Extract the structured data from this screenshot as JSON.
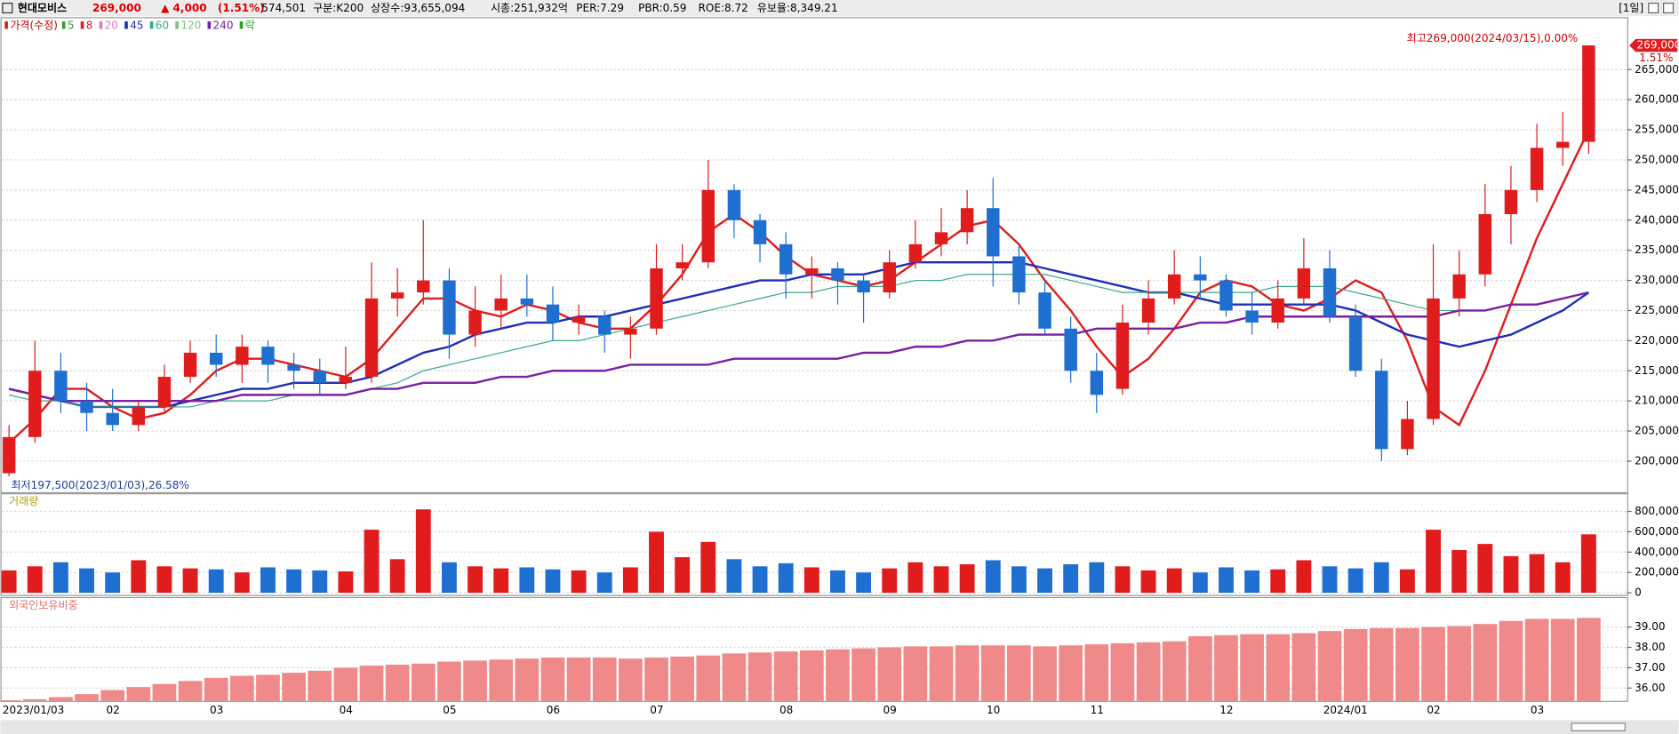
{
  "header": {
    "name": "현대모비스",
    "price": "269,000",
    "change": "▲ 4,000",
    "change_pct": "(1.51%)",
    "volume": "574,501",
    "category": "구분:K200",
    "listed": "상장수:93,655,094",
    "market_cap": "시총:251,932억",
    "per": "PER:7.29",
    "pbr": "PBR:0.59",
    "roe": "ROE:8.72",
    "reserve": "유보율:8,349.21",
    "period": "[1일]"
  },
  "chart_data": [
    {
      "type": "candlestick",
      "title": "가격(수정)",
      "up_color": "#e01c1c",
      "down_color": "#1f6fd1",
      "legend": [
        {
          "name": "5",
          "color": "#2ca02c"
        },
        {
          "name": "8",
          "color": "#e01c1c"
        },
        {
          "name": "20",
          "color": "#e377c2"
        },
        {
          "name": "45",
          "color": "#1f2fb5"
        },
        {
          "name": "60",
          "color": "#3aa88a"
        },
        {
          "name": "120",
          "color": "#7fbf7f"
        },
        {
          "name": "240",
          "color": "#7b1fa2"
        },
        {
          "name": "락",
          "color": "#2ca02c"
        }
      ],
      "categories": [
        "2023/01/03",
        null,
        null,
        null,
        "02",
        null,
        null,
        null,
        "03",
        null,
        null,
        null,
        null,
        "04",
        null,
        null,
        null,
        "05",
        null,
        null,
        null,
        "06",
        null,
        null,
        null,
        "07",
        null,
        null,
        null,
        null,
        "08",
        null,
        null,
        null,
        "09",
        null,
        null,
        null,
        "10",
        null,
        null,
        null,
        "11",
        null,
        null,
        null,
        null,
        "12",
        null,
        null,
        null,
        "2024/01",
        null,
        null,
        null,
        "02",
        null,
        null,
        null,
        "03",
        null,
        null
      ],
      "open": [
        198000,
        204000,
        215000,
        210000,
        208000,
        206000,
        209000,
        214000,
        218000,
        216000,
        219000,
        216000,
        215000,
        213000,
        214000,
        227000,
        228000,
        230000,
        221000,
        225000,
        227000,
        226000,
        223000,
        224000,
        221000,
        222000,
        232000,
        233000,
        245000,
        240000,
        236000,
        231000,
        232000,
        230000,
        228000,
        233000,
        236000,
        238000,
        242000,
        234000,
        228000,
        222000,
        215000,
        212000,
        223000,
        227000,
        231000,
        230000,
        225000,
        223000,
        227000,
        232000,
        224000,
        215000,
        202000,
        207000,
        227000,
        231000,
        241000,
        245000,
        252000,
        253000
      ],
      "high": [
        206000,
        220000,
        218000,
        213000,
        212000,
        210000,
        216000,
        220000,
        221000,
        221000,
        220000,
        218000,
        217000,
        219000,
        233000,
        232000,
        240000,
        232000,
        229000,
        231000,
        231000,
        229000,
        226000,
        225000,
        224000,
        236000,
        236000,
        250000,
        246000,
        241000,
        238000,
        234000,
        233000,
        231000,
        235000,
        240000,
        242000,
        245000,
        247000,
        236000,
        230000,
        224000,
        218000,
        226000,
        230000,
        235000,
        234000,
        231000,
        228000,
        230000,
        237000,
        235000,
        226000,
        217000,
        210000,
        236000,
        235000,
        246000,
        249000,
        256000,
        258000,
        269000
      ],
      "low": [
        197500,
        203000,
        208000,
        205000,
        205000,
        205000,
        208000,
        213000,
        214000,
        213000,
        213000,
        212000,
        211000,
        212000,
        213000,
        224000,
        226000,
        217000,
        219000,
        222000,
        224000,
        220000,
        221000,
        218000,
        217000,
        221000,
        230000,
        232000,
        237000,
        233000,
        227000,
        227000,
        226000,
        223000,
        227000,
        232000,
        234000,
        236000,
        229000,
        226000,
        221000,
        213000,
        208000,
        211000,
        221000,
        226000,
        227000,
        224000,
        221000,
        222000,
        226000,
        223000,
        214000,
        200000,
        201000,
        206000,
        224000,
        229000,
        236000,
        243000,
        249000,
        251000
      ],
      "close": [
        204000,
        215000,
        210000,
        208000,
        206000,
        209000,
        214000,
        218000,
        216000,
        219000,
        216000,
        215000,
        213000,
        214000,
        227000,
        228000,
        230000,
        221000,
        225000,
        227000,
        226000,
        223000,
        224000,
        221000,
        222000,
        232000,
        233000,
        245000,
        240000,
        236000,
        231000,
        232000,
        230000,
        228000,
        233000,
        236000,
        238000,
        242000,
        234000,
        228000,
        222000,
        215000,
        211000,
        223000,
        227000,
        231000,
        230000,
        225000,
        223000,
        227000,
        232000,
        224000,
        215000,
        202000,
        207000,
        227000,
        231000,
        241000,
        245000,
        252000,
        253000,
        269000
      ],
      "series": [
        {
          "name": "8",
          "color": "#e01c1c",
          "width": 2,
          "values": [
            203000,
            207000,
            212000,
            212000,
            209000,
            207000,
            208000,
            211000,
            215000,
            217000,
            217000,
            216000,
            215000,
            214000,
            217000,
            222000,
            227000,
            227000,
            225000,
            224000,
            226000,
            225000,
            223000,
            222000,
            222000,
            226000,
            231000,
            238000,
            241000,
            238000,
            234000,
            231000,
            230000,
            229000,
            230000,
            233000,
            236000,
            239000,
            240000,
            236000,
            230000,
            225000,
            219000,
            214000,
            217000,
            222000,
            228000,
            230000,
            229000,
            226000,
            225000,
            227000,
            230000,
            228000,
            220000,
            209000,
            206000,
            215000,
            226000,
            237000,
            246000,
            255000
          ]
        },
        {
          "name": "45",
          "color": "#1f2fb5",
          "width": 2,
          "values": [
            212000,
            211000,
            210000,
            209000,
            209000,
            209000,
            209000,
            210000,
            211000,
            212000,
            212000,
            213000,
            213000,
            213000,
            214000,
            216000,
            218000,
            219000,
            221000,
            222000,
            223000,
            223000,
            224000,
            224000,
            225000,
            226000,
            227000,
            228000,
            229000,
            230000,
            230000,
            231000,
            231000,
            231000,
            232000,
            233000,
            233000,
            233000,
            233000,
            233000,
            232000,
            231000,
            230000,
            229000,
            228000,
            228000,
            227000,
            226000,
            226000,
            226000,
            226000,
            226000,
            225000,
            223000,
            221000,
            220000,
            219000,
            220000,
            221000,
            223000,
            225000,
            228000
          ]
        },
        {
          "name": "60",
          "color": "#3aa88a",
          "width": 1,
          "values": [
            211000,
            210000,
            210000,
            209000,
            209000,
            209000,
            209000,
            209000,
            210000,
            210000,
            210000,
            211000,
            211000,
            211000,
            212000,
            213000,
            215000,
            216000,
            217000,
            218000,
            219000,
            220000,
            220000,
            221000,
            222000,
            223000,
            224000,
            225000,
            226000,
            227000,
            228000,
            228000,
            229000,
            229000,
            229000,
            230000,
            230000,
            231000,
            231000,
            231000,
            231000,
            230000,
            229000,
            228000,
            228000,
            228000,
            228000,
            228000,
            228000,
            229000,
            229000,
            229000,
            228000,
            227000,
            226000,
            225000,
            225000,
            225000,
            226000,
            226000,
            227000,
            228000
          ]
        },
        {
          "name": "240",
          "color": "#7b1fa2",
          "width": 2,
          "values": [
            212000,
            211000,
            210000,
            210000,
            210000,
            210000,
            210000,
            210000,
            210000,
            211000,
            211000,
            211000,
            211000,
            211000,
            212000,
            212000,
            213000,
            213000,
            213000,
            214000,
            214000,
            215000,
            215000,
            215000,
            216000,
            216000,
            216000,
            216000,
            217000,
            217000,
            217000,
            217000,
            217000,
            218000,
            218000,
            219000,
            219000,
            220000,
            220000,
            221000,
            221000,
            221000,
            222000,
            222000,
            222000,
            222000,
            223000,
            223000,
            224000,
            224000,
            224000,
            224000,
            224000,
            224000,
            224000,
            224000,
            225000,
            225000,
            226000,
            226000,
            227000,
            228000
          ]
        }
      ],
      "ylim": [
        194850,
        273700
      ],
      "yticks": [
        {
          "value": 200000,
          "label": "200,000"
        },
        {
          "value": 205000,
          "label": "205,000"
        },
        {
          "value": 210000,
          "label": "210,000"
        },
        {
          "value": 215000,
          "label": "215,000"
        },
        {
          "value": 220000,
          "label": "220,000"
        },
        {
          "value": 225000,
          "label": "225,000"
        },
        {
          "value": 230000,
          "label": "230,000"
        },
        {
          "value": 235000,
          "label": "235,000"
        },
        {
          "value": 240000,
          "label": "240,000"
        },
        {
          "value": 245000,
          "label": "245,000"
        },
        {
          "value": 250000,
          "label": "250,000"
        },
        {
          "value": 255000,
          "label": "255,000"
        },
        {
          "value": 260000,
          "label": "260,000"
        },
        {
          "value": 265000,
          "label": "265,000"
        }
      ],
      "grid": true,
      "annotations": {
        "high_note": "최고269,000(2024/03/15),0.00%",
        "change_pct": "1.51%",
        "last_price": {
          "value": 269000,
          "label": "269,000"
        },
        "low_note": "최저197,500(2023/01/03),26.58%"
      }
    },
    {
      "type": "bar",
      "title": "거래량",
      "values": [
        220000,
        260000,
        300000,
        240000,
        200000,
        320000,
        260000,
        240000,
        230000,
        200000,
        250000,
        230000,
        220000,
        210000,
        620000,
        330000,
        820000,
        300000,
        260000,
        240000,
        250000,
        230000,
        220000,
        200000,
        250000,
        600000,
        350000,
        500000,
        330000,
        260000,
        290000,
        250000,
        220000,
        200000,
        240000,
        300000,
        260000,
        280000,
        320000,
        260000,
        240000,
        280000,
        300000,
        260000,
        220000,
        240000,
        200000,
        250000,
        220000,
        230000,
        320000,
        260000,
        240000,
        300000,
        230000,
        620000,
        420000,
        480000,
        360000,
        380000,
        300000,
        574501
      ],
      "ylim": [
        -21000,
        968000
      ],
      "yticks": [
        0,
        {
          "value": 200000,
          "label": "200,000"
        },
        {
          "value": 400000,
          "label": "400,000"
        },
        {
          "value": 600000,
          "label": "600,000"
        },
        {
          "value": 800000,
          "label": "800,000"
        }
      ],
      "grid": true
    },
    {
      "type": "bar",
      "title": "외국인보유비중",
      "color": "#f08a8a",
      "values": [
        35.4,
        35.45,
        35.55,
        35.7,
        35.9,
        36.05,
        36.2,
        36.35,
        36.5,
        36.6,
        36.65,
        36.75,
        36.85,
        37.0,
        37.1,
        37.15,
        37.2,
        37.3,
        37.35,
        37.4,
        37.45,
        37.5,
        37.5,
        37.5,
        37.45,
        37.5,
        37.55,
        37.6,
        37.7,
        37.75,
        37.8,
        37.85,
        37.9,
        37.95,
        38.0,
        38.05,
        38.05,
        38.1,
        38.1,
        38.1,
        38.05,
        38.1,
        38.15,
        38.2,
        38.25,
        38.3,
        38.55,
        38.6,
        38.65,
        38.65,
        38.7,
        38.8,
        38.9,
        38.95,
        38.95,
        39.0,
        39.05,
        39.15,
        39.3,
        39.4,
        39.4,
        39.45
      ],
      "ylim": [
        35.37,
        40.37
      ],
      "yticks": [
        {
          "value": 36,
          "label": "36.00"
        },
        {
          "value": 37,
          "label": "37.00"
        },
        {
          "value": 38,
          "label": "38.00"
        },
        {
          "value": 39,
          "label": "39.00"
        }
      ],
      "grid": true
    }
  ]
}
